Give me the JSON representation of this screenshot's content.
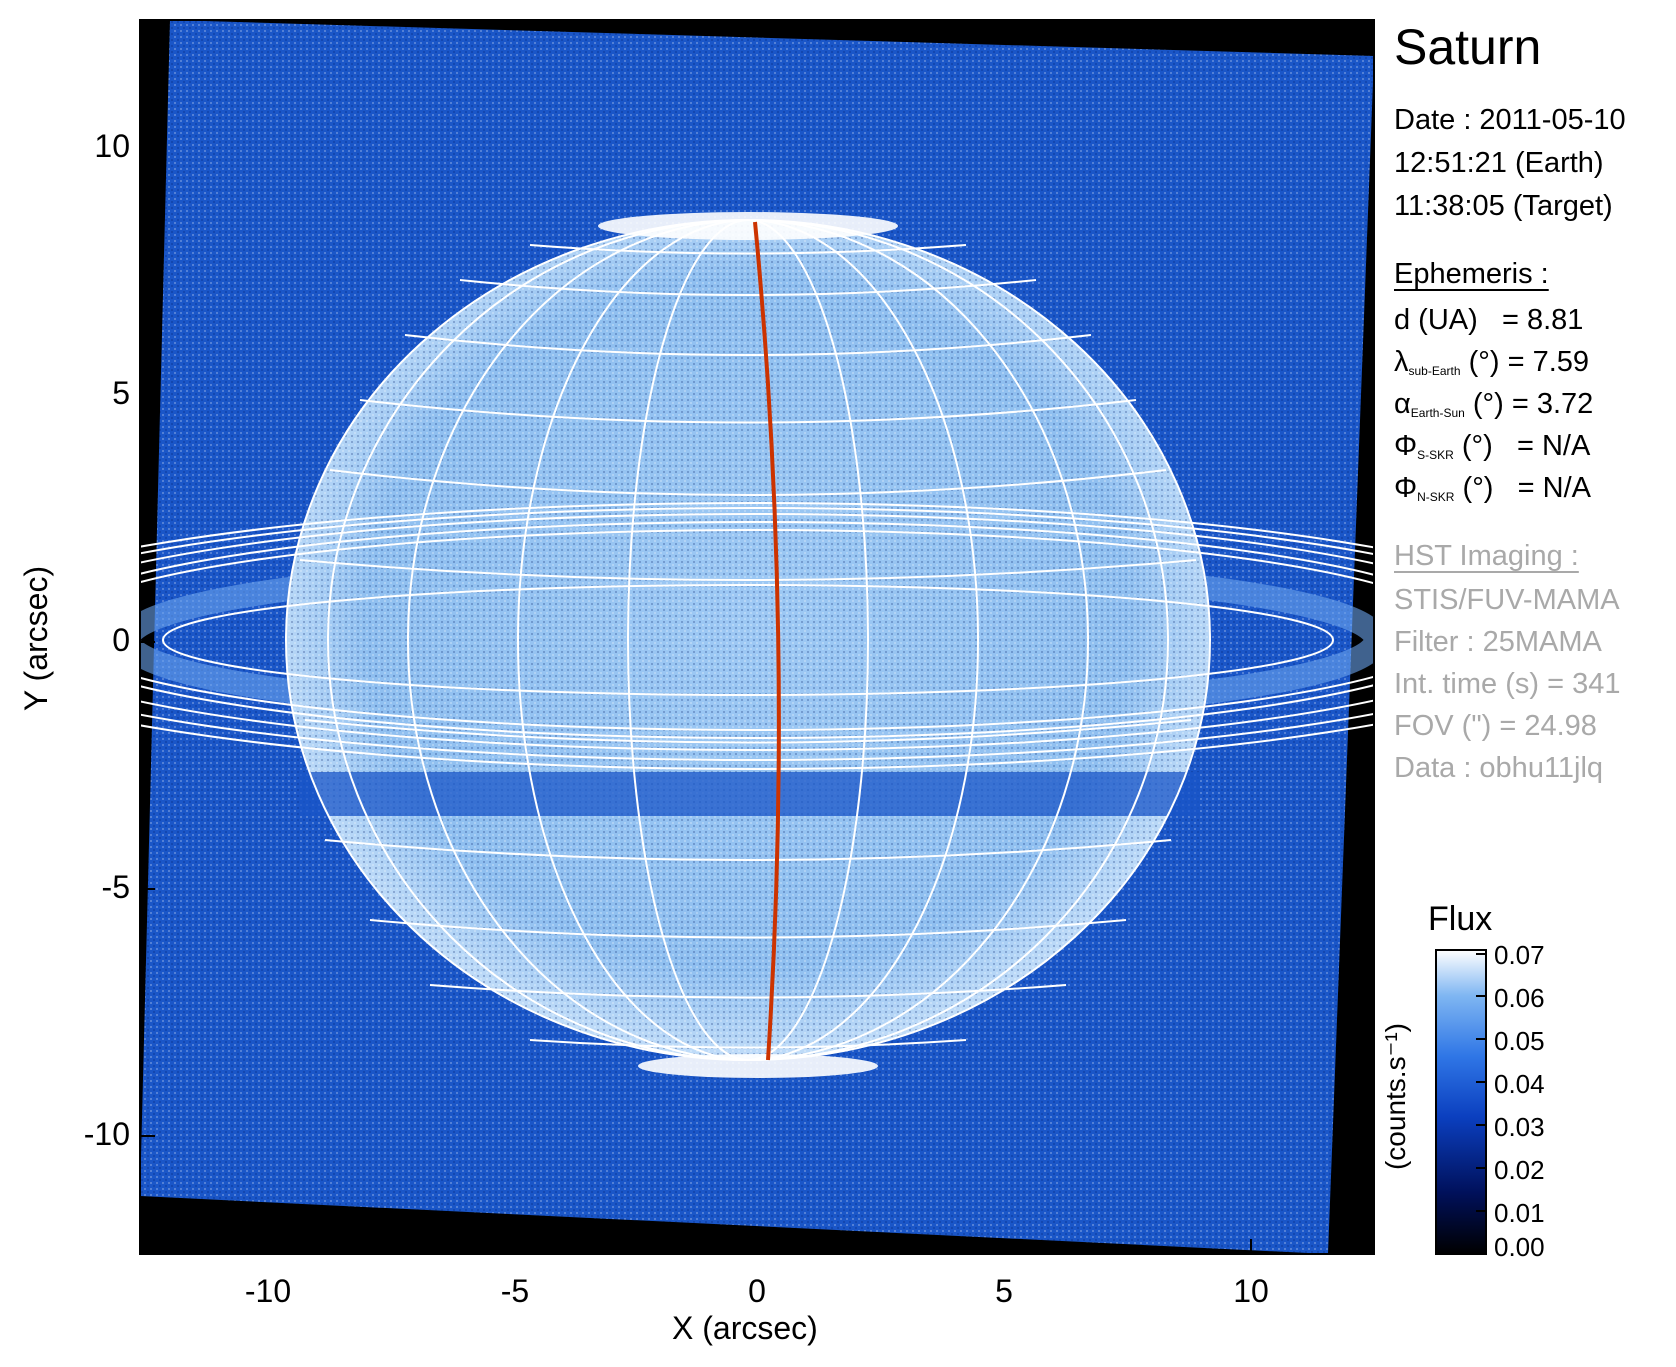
{
  "target": "Saturn",
  "date_label": "Date : 2011-05-10",
  "time_earth": "12:51:21 (Earth)",
  "time_target": "11:38:05 (Target)",
  "ephemeris": {
    "heading": "Ephemeris :",
    "d_label": "d (UA)",
    "d_value": "= 8.81",
    "lat_symbol": "λ",
    "lat_sub": "sub-Earth",
    "lat_unit": "(°)",
    "lat_value": "= 7.59",
    "phase_symbol": "α",
    "phase_sub": "Earth-Sun",
    "phase_unit": "(°)",
    "phase_value": "= 3.72",
    "s_symbol": "Φ",
    "s_sub": "S-SKR",
    "s_unit": "(°)",
    "s_value": "= N/A",
    "n_symbol": "Φ",
    "n_sub": "N-SKR",
    "n_unit": "(°)",
    "n_value": "= N/A"
  },
  "hst": {
    "heading": "HST Imaging :",
    "instrument": "STIS/FUV-MAMA",
    "filter": "Filter : 25MAMA",
    "int_time": "Int. time (s) = 341",
    "fov": "FOV (\") = 24.98",
    "data": "Data : obhu11jlq"
  },
  "axes": {
    "xlabel": "X (arcsec)",
    "ylabel": "Y (arcsec)",
    "xticks": [
      "-10",
      "-5",
      "0",
      "5",
      "10"
    ],
    "yticks": [
      "10",
      "5",
      "0",
      "-5",
      "-10"
    ],
    "xlim": [
      -12.5,
      12.5
    ],
    "ylim": [
      -12.5,
      12.5
    ]
  },
  "colorbar": {
    "title": "Flux",
    "label": "(counts.s⁻¹)",
    "ticks": [
      "0.07",
      "0.06",
      "0.05",
      "0.04",
      "0.03",
      "0.02",
      "0.01",
      "0.00"
    ],
    "range": [
      0.0,
      0.07
    ],
    "colormap": [
      "#000000",
      "#00105a",
      "#0b3fbf",
      "#2f76e6",
      "#7fb6f2",
      "#ffffff"
    ]
  },
  "colors": {
    "background_sky": "#1a56c8",
    "grid": "#ffffff",
    "meridian": "#cc3300"
  }
}
